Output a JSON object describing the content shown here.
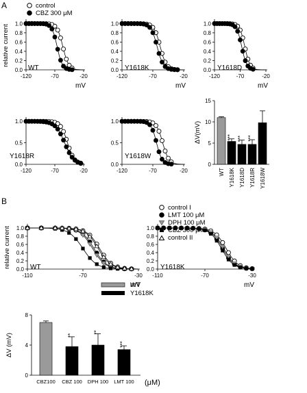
{
  "panel_letters": [
    "A",
    "B"
  ],
  "legend_a": {
    "items": [
      "control",
      "CBZ 300 μM"
    ]
  },
  "legend_b": {
    "items": [
      "control I",
      "LMT 100 μM",
      "DPH 100 μM",
      "CBZ 300 μM",
      "control II"
    ]
  },
  "legend_c": {
    "items": [
      "WT",
      "Y1618K"
    ]
  },
  "colors": {
    "open": "#ffffff",
    "filled": "#000000",
    "gray": "#9a9a9a",
    "stroke": "#000000"
  },
  "chart_data": [
    {
      "id": "A-WT",
      "type": "scatter",
      "label": "WT",
      "ylabel": "relative current",
      "xlabel": "mV",
      "xlim": [
        -120,
        -20
      ],
      "ylim": [
        0,
        1.05
      ],
      "xticks": [
        "-120",
        "-70",
        "-20"
      ],
      "yticks": [
        "0.0",
        "0.2",
        "0.4",
        "0.6",
        "0.8",
        "1.0"
      ],
      "series": [
        {
          "name": "control",
          "style": "open",
          "v50": -56,
          "k": 5,
          "x": [
            -120,
            -115,
            -110,
            -105,
            -100,
            -95,
            -90,
            -85,
            -80,
            -75,
            -70,
            -65,
            -60,
            -55,
            -50,
            -45,
            -40
          ]
        },
        {
          "name": "CBZ 300 μM",
          "style": "filled",
          "v50": -66,
          "k": 4.5,
          "x": [
            -120,
            -115,
            -110,
            -105,
            -100,
            -95,
            -90,
            -85,
            -80,
            -75,
            -70,
            -65,
            -60,
            -55,
            -50,
            -45,
            -40
          ]
        }
      ]
    },
    {
      "id": "A-Y1618K",
      "type": "scatter",
      "label": "Y1618K",
      "ylabel": "",
      "xlabel": "mV",
      "xlim": [
        -120,
        -20
      ],
      "ylim": [
        0,
        1.05
      ],
      "xticks": [
        "-120",
        "-70",
        "-20"
      ],
      "yticks": [
        "0.0",
        "0.2",
        "0.4",
        "0.6",
        "0.8",
        "1.0"
      ],
      "series": [
        {
          "name": "control",
          "style": "open",
          "v50": -58,
          "k": 5,
          "x": [
            -120,
            -115,
            -110,
            -105,
            -100,
            -95,
            -90,
            -85,
            -80,
            -75,
            -70,
            -65,
            -60,
            -55,
            -50,
            -45,
            -40,
            -35,
            -30
          ]
        },
        {
          "name": "CBZ 300 μM",
          "style": "filled",
          "v50": -63,
          "k": 5,
          "x": [
            -120,
            -115,
            -110,
            -105,
            -100,
            -95,
            -90,
            -85,
            -80,
            -75,
            -70,
            -65,
            -60,
            -55,
            -50,
            -45,
            -40,
            -35,
            -30
          ]
        }
      ]
    },
    {
      "id": "A-Y1618D",
      "type": "scatter",
      "label": "Y1618D",
      "ylabel": "",
      "xlabel": "mV",
      "xlim": [
        -120,
        -20
      ],
      "ylim": [
        0,
        1.05
      ],
      "xticks": [
        "-120",
        "-70",
        "-20"
      ],
      "yticks": [
        "0.0",
        "0.2",
        "0.4",
        "0.6",
        "0.8",
        "1.0"
      ],
      "series": [
        {
          "name": "control",
          "style": "open",
          "v50": -61,
          "k": 5,
          "x": [
            -120,
            -115,
            -110,
            -105,
            -100,
            -95,
            -90,
            -85,
            -80,
            -75,
            -70,
            -65,
            -60,
            -55,
            -50,
            -45
          ]
        },
        {
          "name": "CBZ 300 μM",
          "style": "filled",
          "v50": -67,
          "k": 5,
          "x": [
            -120,
            -115,
            -110,
            -105,
            -100,
            -95,
            -90,
            -85,
            -80,
            -75,
            -70,
            -65,
            -60,
            -55,
            -50,
            -45
          ]
        }
      ]
    },
    {
      "id": "A-Y1618R",
      "type": "scatter",
      "label": "Y1618R",
      "ylabel": "",
      "xlabel": "",
      "xlim": [
        -120,
        -20
      ],
      "ylim": [
        0,
        1.05
      ],
      "xticks": [
        "-120",
        "-70",
        "-20"
      ],
      "yticks": [
        "0.0",
        "0.5",
        "1.0"
      ],
      "series": [
        {
          "name": "control",
          "style": "open",
          "v50": -48,
          "k": 6,
          "x": [
            -120,
            -115,
            -110,
            -105,
            -100,
            -95,
            -90,
            -85,
            -80,
            -75,
            -70,
            -65,
            -60,
            -55,
            -50,
            -45,
            -40,
            -35,
            -30,
            -25
          ]
        },
        {
          "name": "CBZ 300 μM",
          "style": "filled",
          "v50": -53,
          "k": 8,
          "x": [
            -120,
            -115,
            -110,
            -105,
            -100,
            -95,
            -90,
            -85,
            -80,
            -75,
            -70,
            -65,
            -60,
            -55,
            -50,
            -45,
            -40,
            -35,
            -30,
            -25
          ]
        }
      ]
    },
    {
      "id": "A-Y1618W",
      "type": "scatter",
      "label": "Y1618W",
      "ylabel": "",
      "xlabel": "",
      "xlim": [
        -120,
        -20
      ],
      "ylim": [
        0,
        1.05
      ],
      "xticks": [
        "-120",
        "-70",
        "-20"
      ],
      "yticks": [
        "0.0",
        "0.5",
        "1.0"
      ],
      "series": [
        {
          "name": "control",
          "style": "open",
          "v50": -54,
          "k": 5,
          "x": [
            -120,
            -115,
            -110,
            -105,
            -100,
            -95,
            -90,
            -85,
            -80,
            -75,
            -70,
            -65,
            -60,
            -55,
            -50,
            -45,
            -40
          ]
        },
        {
          "name": "CBZ 300 μM",
          "style": "filled",
          "v50": -64,
          "k": 4.5,
          "x": [
            -120,
            -115,
            -110,
            -105,
            -100,
            -95,
            -90,
            -85,
            -80,
            -75,
            -70,
            -65,
            -60,
            -55,
            -50,
            -45,
            -40
          ]
        }
      ]
    },
    {
      "id": "A-bar",
      "type": "bar",
      "ylabel": "ΔV(mV)",
      "ylim": [
        0,
        15
      ],
      "yticks": [
        "0",
        "5",
        "10",
        "15"
      ],
      "categories": [
        "WT",
        "Y1618K",
        "Y1618D",
        "Y1618R",
        "Y1618W"
      ],
      "values": [
        11,
        5.4,
        4.7,
        4.7,
        9.8
      ],
      "errors": [
        0.2,
        0.6,
        1.0,
        1.1,
        2.8
      ],
      "styles": [
        "gray",
        "black",
        "black",
        "black",
        "black"
      ],
      "significance": [
        "",
        "***",
        "***",
        "***",
        ""
      ]
    },
    {
      "id": "B-WT",
      "type": "scatter",
      "label": "WT",
      "ylabel": "relative current",
      "xlabel": "mV",
      "xlim": [
        -110,
        -30
      ],
      "ylim": [
        0,
        1.05
      ],
      "xticks": [
        "-110",
        "-70",
        "-30"
      ],
      "yticks": [
        "0.0",
        "0.2",
        "0.4",
        "0.6",
        "0.8",
        "1.0"
      ],
      "series": [
        {
          "name": "control I",
          "style": "open",
          "v50": -58,
          "k": 4.5,
          "x": [
            -110,
            -100,
            -90,
            -85,
            -80,
            -75,
            -70,
            -65,
            -60,
            -55,
            -50,
            -45,
            -40,
            -35
          ]
        },
        {
          "name": "LMT 100 μM",
          "style": "filled",
          "v50": -62,
          "k": 4.5,
          "x": [
            -110,
            -100,
            -90,
            -85,
            -80,
            -75,
            -70,
            -65,
            -60,
            -55,
            -50,
            -45,
            -40,
            -35
          ]
        },
        {
          "name": "DPH 100 μM",
          "style": "gray-tri",
          "v50": -63,
          "k": 4.5,
          "x": [
            -110,
            -100,
            -90,
            -85,
            -80,
            -75,
            -70,
            -65,
            -60,
            -55,
            -50,
            -45,
            -40,
            -35
          ]
        },
        {
          "name": "CBZ 300 μM",
          "style": "filled-sq",
          "v50": -70,
          "k": 5,
          "x": [
            -110,
            -100,
            -90,
            -85,
            -80,
            -75,
            -70,
            -65,
            -60,
            -55,
            -50,
            -45,
            -40,
            -35
          ]
        },
        {
          "name": "control II",
          "style": "open-tri",
          "v50": -59,
          "k": 4.5,
          "x": [
            -110,
            -100,
            -90,
            -85,
            -80,
            -75,
            -70,
            -65,
            -60,
            -55,
            -50,
            -45,
            -40,
            -35
          ]
        }
      ]
    },
    {
      "id": "B-Y1618K",
      "type": "scatter",
      "label": "Y1618K",
      "ylabel": "",
      "xlabel": "mV",
      "xlim": [
        -110,
        -30
      ],
      "ylim": [
        0,
        1.05
      ],
      "xticks": [
        "-110",
        "-70",
        "-30"
      ],
      "yticks": [
        "0.0",
        "0.2",
        "0.4",
        "0.6",
        "0.8",
        "1.0"
      ],
      "series": [
        {
          "name": "control I",
          "style": "open",
          "v50": -52,
          "k": 5,
          "x": [
            -110,
            -105,
            -100,
            -95,
            -90,
            -85,
            -80,
            -75,
            -70,
            -65,
            -60,
            -55,
            -50,
            -45,
            -40,
            -35,
            -30
          ]
        },
        {
          "name": "LMT 100 μM",
          "style": "filled",
          "v50": -55,
          "k": 5,
          "x": [
            -110,
            -105,
            -100,
            -95,
            -90,
            -85,
            -80,
            -75,
            -70,
            -65,
            -60,
            -55,
            -50,
            -45,
            -40,
            -35,
            -30
          ]
        },
        {
          "name": "DPH 100 μM",
          "style": "gray-tri",
          "v50": -54,
          "k": 5,
          "x": [
            -110,
            -105,
            -100,
            -95,
            -90,
            -85,
            -80,
            -75,
            -70,
            -65,
            -60,
            -55,
            -50,
            -45,
            -40,
            -35,
            -30
          ]
        },
        {
          "name": "CBZ 300 μM",
          "style": "filled-sq",
          "v50": -56,
          "k": 5,
          "x": [
            -110,
            -105,
            -100,
            -95,
            -90,
            -85,
            -80,
            -75,
            -70,
            -65,
            -60,
            -55,
            -50,
            -45,
            -40,
            -35,
            -30
          ]
        }
      ]
    },
    {
      "id": "B-bar",
      "type": "bar",
      "ylabel": "ΔV (mV)",
      "ylim": [
        0,
        8
      ],
      "yticks": [
        "0",
        "4",
        "8"
      ],
      "categories": [
        "CBZ100",
        "CBZ 100",
        "DPH 100",
        "LMT 100"
      ],
      "values": [
        7.0,
        3.8,
        4.0,
        3.4
      ],
      "errors": [
        0.2,
        1.3,
        1.5,
        0.5
      ],
      "styles": [
        "gray",
        "black",
        "black",
        "black"
      ],
      "significance": [
        "",
        "**",
        "**",
        "***"
      ],
      "unit": "(μM)"
    }
  ]
}
